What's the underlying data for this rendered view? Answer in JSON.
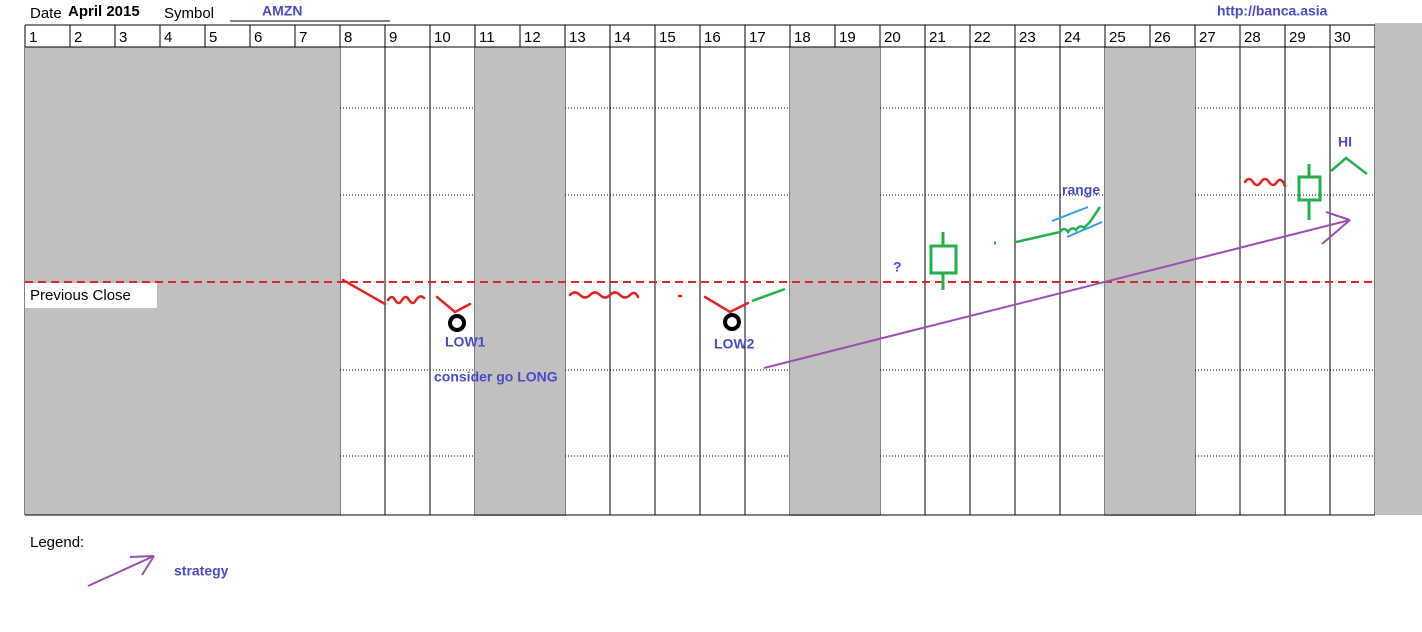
{
  "header": {
    "date_label": "Date",
    "month": "April 2015",
    "symbol_label": "Symbol",
    "symbol": "AMZN",
    "url": "http://banca.asia"
  },
  "days": [
    "1",
    "2",
    "3",
    "4",
    "5",
    "6",
    "7",
    "8",
    "9",
    "10",
    "11",
    "12",
    "13",
    "14",
    "15",
    "16",
    "17",
    "18",
    "19",
    "20",
    "21",
    "22",
    "23",
    "24",
    "25",
    "26",
    "27",
    "28",
    "29",
    "30"
  ],
  "annotations": {
    "previous_close": "Previous Close",
    "low1": "LOW1",
    "consider": "consider go LONG",
    "low2": "LOW2",
    "question": "?",
    "range": "range",
    "hi": "HI"
  },
  "legend": {
    "title": "Legend:",
    "strategy": "strategy"
  }
}
